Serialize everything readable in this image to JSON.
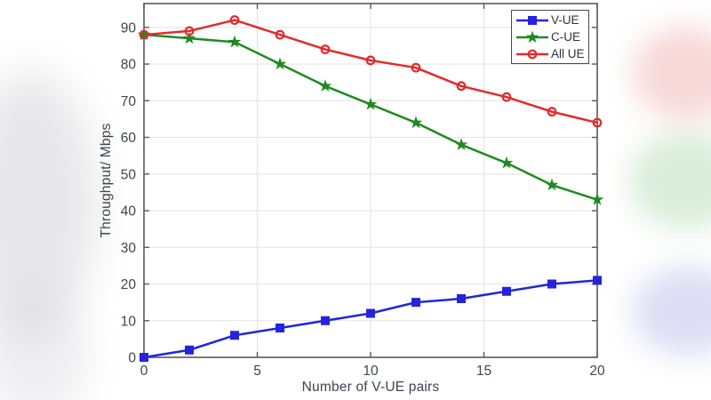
{
  "figure": {
    "xlabel": "Number of V-UE pairs",
    "ylabel": "Throughput/ Mbps"
  },
  "chart_data": {
    "type": "line",
    "title": "",
    "xlabel": "Number of V-UE pairs",
    "ylabel": "Throughput/ Mbps",
    "x": [
      0,
      2,
      4,
      6,
      8,
      10,
      12,
      14,
      16,
      18,
      20
    ],
    "series": [
      {
        "name": "V-UE",
        "color": "#2424dd",
        "marker": "square",
        "values": [
          0,
          2,
          6,
          8,
          10,
          12,
          15,
          16,
          18,
          20,
          21
        ]
      },
      {
        "name": "C-UE",
        "color": "#1f8b1f",
        "marker": "star",
        "values": [
          88,
          87,
          86,
          80,
          74,
          69,
          64,
          58,
          53,
          47,
          43
        ]
      },
      {
        "name": "All UE",
        "color": "#e12b2b",
        "marker": "circle",
        "values": [
          88,
          89,
          92,
          88,
          84,
          81,
          79,
          74,
          71,
          67,
          64
        ]
      }
    ],
    "xlim": [
      0,
      20
    ],
    "ylim": [
      0,
      96.5
    ],
    "xticks": [
      0,
      5,
      10,
      15,
      20
    ],
    "yticks": [
      0,
      10,
      20,
      30,
      40,
      50,
      60,
      70,
      80,
      90
    ],
    "grid": true,
    "legend_position": "top-right"
  },
  "style_colors": {
    "axis": "#5a5a5a",
    "grid": "#e4e4e4",
    "tick_text": "#3e4450",
    "legend_border": "#4a4a4a"
  }
}
